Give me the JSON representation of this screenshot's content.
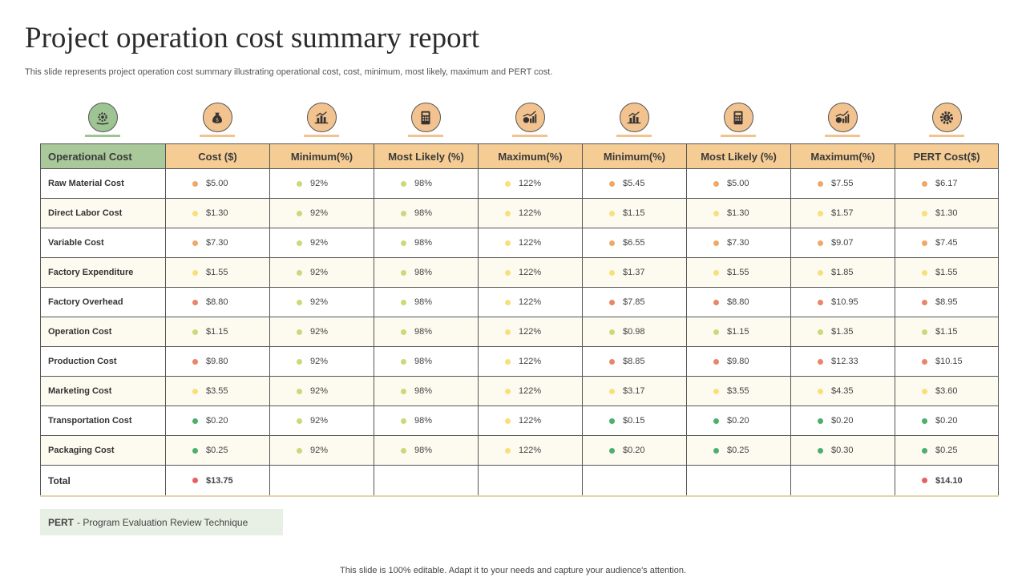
{
  "title": "Project operation cost summary report",
  "subtitle": "This slide represents project operation cost summary illustrating operational cost, cost, minimum, most likely, maximum and PERT cost.",
  "colors": {
    "header_orange": "#f5cc94",
    "header_green": "#a9c99b",
    "dot_orange": "#f0a868",
    "dot_yellow": "#f7e07a",
    "dot_lightgreen": "#c8da7a",
    "dot_red": "#e8856a",
    "dot_green": "#4caf6a",
    "dot_total": "#e85f5f"
  },
  "icons": [
    "gear-hand-icon",
    "money-bag-icon",
    "bar-chart-money-icon",
    "calculator-icon",
    "growth-chart-icon",
    "bar-chart-money-icon",
    "calculator-icon",
    "growth-chart-icon",
    "gear-dollar-icon"
  ],
  "table": {
    "headers": [
      "Operational Cost",
      "Cost ($)",
      "Minimum(%)",
      "Most  Likely (%)",
      "Maximum(%)",
      "Minimum(%)",
      "Most  Likely (%)",
      "Maximum(%)",
      "PERT Cost($)"
    ],
    "rows": [
      {
        "label": "Raw Material Cost",
        "cells": [
          {
            "v": "$5.00",
            "c": "orange"
          },
          {
            "v": "92%",
            "c": "lightgreen"
          },
          {
            "v": "98%",
            "c": "lightgreen"
          },
          {
            "v": "122%",
            "c": "yellow"
          },
          {
            "v": "$5.45",
            "c": "orange"
          },
          {
            "v": "$5.00",
            "c": "orange"
          },
          {
            "v": "$7.55",
            "c": "orange"
          },
          {
            "v": "$6.17",
            "c": "orange"
          }
        ]
      },
      {
        "label": "Direct Labor Cost",
        "cells": [
          {
            "v": "$1.30",
            "c": "yellow"
          },
          {
            "v": "92%",
            "c": "lightgreen"
          },
          {
            "v": "98%",
            "c": "lightgreen"
          },
          {
            "v": "122%",
            "c": "yellow"
          },
          {
            "v": "$1.15",
            "c": "yellow"
          },
          {
            "v": "$1.30",
            "c": "yellow"
          },
          {
            "v": "$1.57",
            "c": "yellow"
          },
          {
            "v": "$1.30",
            "c": "yellow"
          }
        ]
      },
      {
        "label": "Variable Cost",
        "cells": [
          {
            "v": "$7.30",
            "c": "orange"
          },
          {
            "v": "92%",
            "c": "lightgreen"
          },
          {
            "v": "98%",
            "c": "lightgreen"
          },
          {
            "v": "122%",
            "c": "yellow"
          },
          {
            "v": "$6.55",
            "c": "orange"
          },
          {
            "v": "$7.30",
            "c": "orange"
          },
          {
            "v": "$9.07",
            "c": "orange"
          },
          {
            "v": "$7.45",
            "c": "orange"
          }
        ]
      },
      {
        "label": "Factory Expenditure",
        "cells": [
          {
            "v": "$1.55",
            "c": "yellow"
          },
          {
            "v": "92%",
            "c": "lightgreen"
          },
          {
            "v": "98%",
            "c": "lightgreen"
          },
          {
            "v": "122%",
            "c": "yellow"
          },
          {
            "v": "$1.37",
            "c": "yellow"
          },
          {
            "v": "$1.55",
            "c": "yellow"
          },
          {
            "v": "$1.85",
            "c": "yellow"
          },
          {
            "v": "$1.55",
            "c": "yellow"
          }
        ]
      },
      {
        "label": "Factory Overhead",
        "cells": [
          {
            "v": "$8.80",
            "c": "red"
          },
          {
            "v": "92%",
            "c": "lightgreen"
          },
          {
            "v": "98%",
            "c": "lightgreen"
          },
          {
            "v": "122%",
            "c": "yellow"
          },
          {
            "v": "$7.85",
            "c": "red"
          },
          {
            "v": "$8.80",
            "c": "red"
          },
          {
            "v": "$10.95",
            "c": "red"
          },
          {
            "v": "$8.95",
            "c": "red"
          }
        ]
      },
      {
        "label": "Operation Cost",
        "cells": [
          {
            "v": "$1.15",
            "c": "lightgreen"
          },
          {
            "v": "92%",
            "c": "lightgreen"
          },
          {
            "v": "98%",
            "c": "lightgreen"
          },
          {
            "v": "122%",
            "c": "yellow"
          },
          {
            "v": "$0.98",
            "c": "lightgreen"
          },
          {
            "v": "$1.15",
            "c": "lightgreen"
          },
          {
            "v": "$1.35",
            "c": "lightgreen"
          },
          {
            "v": "$1.15",
            "c": "lightgreen"
          }
        ]
      },
      {
        "label": "Production Cost",
        "cells": [
          {
            "v": "$9.80",
            "c": "red"
          },
          {
            "v": "92%",
            "c": "lightgreen"
          },
          {
            "v": "98%",
            "c": "lightgreen"
          },
          {
            "v": "122%",
            "c": "yellow"
          },
          {
            "v": "$8.85",
            "c": "red"
          },
          {
            "v": "$9.80",
            "c": "red"
          },
          {
            "v": "$12.33",
            "c": "red"
          },
          {
            "v": "$10.15",
            "c": "red"
          }
        ]
      },
      {
        "label": "Marketing Cost",
        "cells": [
          {
            "v": "$3.55",
            "c": "yellow"
          },
          {
            "v": "92%",
            "c": "lightgreen"
          },
          {
            "v": "98%",
            "c": "lightgreen"
          },
          {
            "v": "122%",
            "c": "yellow"
          },
          {
            "v": "$3.17",
            "c": "yellow"
          },
          {
            "v": "$3.55",
            "c": "yellow"
          },
          {
            "v": "$4.35",
            "c": "yellow"
          },
          {
            "v": "$3.60",
            "c": "yellow"
          }
        ]
      },
      {
        "label": "Transportation Cost",
        "cells": [
          {
            "v": "$0.20",
            "c": "green"
          },
          {
            "v": "92%",
            "c": "lightgreen"
          },
          {
            "v": "98%",
            "c": "lightgreen"
          },
          {
            "v": "122%",
            "c": "yellow"
          },
          {
            "v": "$0.15",
            "c": "green"
          },
          {
            "v": "$0.20",
            "c": "green"
          },
          {
            "v": "$0.20",
            "c": "green"
          },
          {
            "v": "$0.20",
            "c": "green"
          }
        ]
      },
      {
        "label": "Packaging Cost",
        "cells": [
          {
            "v": "$0.25",
            "c": "green"
          },
          {
            "v": "92%",
            "c": "lightgreen"
          },
          {
            "v": "98%",
            "c": "lightgreen"
          },
          {
            "v": "122%",
            "c": "yellow"
          },
          {
            "v": "$0.20",
            "c": "green"
          },
          {
            "v": "$0.25",
            "c": "green"
          },
          {
            "v": "$0.30",
            "c": "green"
          },
          {
            "v": "$0.25",
            "c": "green"
          }
        ]
      }
    ],
    "total": {
      "label": "Total",
      "cost": "$13.75",
      "pert": "$14.10"
    }
  },
  "pert_note": {
    "term": "PERT",
    "definition": " - Program  Evaluation  Review  Technique"
  },
  "footer": "This slide is 100% editable. Adapt it to your needs and capture your audience's attention."
}
